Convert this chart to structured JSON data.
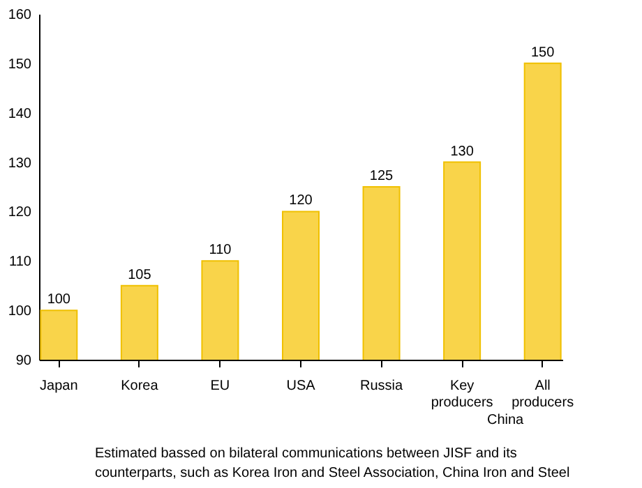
{
  "chart_data": {
    "type": "bar",
    "categories": [
      "Japan",
      "Korea",
      "EU",
      "USA",
      "Russia",
      "Key producers",
      "All producers"
    ],
    "values": [
      100,
      105,
      110,
      120,
      125,
      130,
      150
    ],
    "color": "#f9d44a",
    "ylim": [
      90,
      160
    ],
    "yticks": [
      90,
      100,
      110,
      120,
      130,
      140,
      150,
      160
    ],
    "grid": false,
    "data_labels": true,
    "annotations": [
      "China",
      "Estimated bassed on bilateral communications between JISF and its\ncounterparts, such as Korea Iron and Steel Association, China Iron and Steel"
    ]
  }
}
